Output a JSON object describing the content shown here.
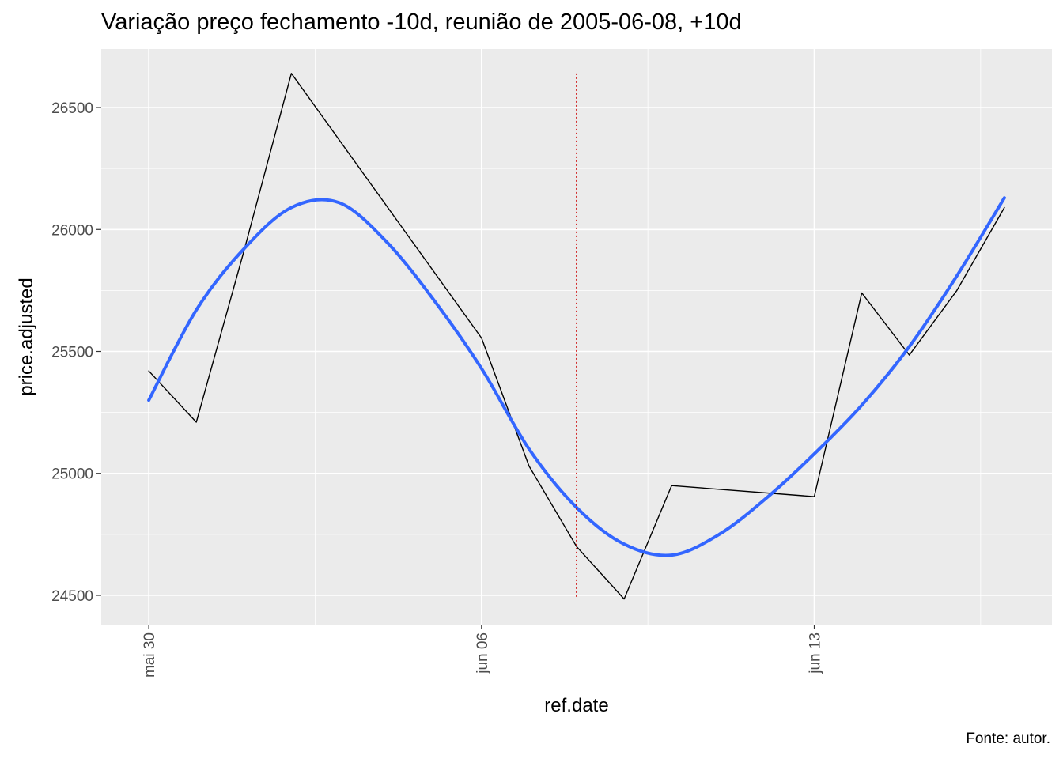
{
  "chart_data": {
    "type": "line",
    "title": "Variação preço fechamento -10d, reunião de 2005-06-08, +10d",
    "xlabel": "ref.date",
    "ylabel": "price.adjusted",
    "caption": "Fonte: autor.",
    "x_tick_labels": [
      "mai 30",
      "jun 06",
      "jun 13"
    ],
    "y_tick_labels": [
      "24500",
      "25000",
      "25500",
      "26000",
      "26500"
    ],
    "y_ticks": [
      24500,
      25000,
      25500,
      26000,
      26500
    ],
    "ylim": [
      24380,
      26740
    ],
    "xlim": [
      "2005-05-29",
      "2005-06-18"
    ],
    "x_ticks": [
      "2005-05-30",
      "2005-06-06",
      "2005-06-13"
    ],
    "grid": true,
    "series": [
      {
        "x": [
          "2005-05-30",
          "2005-05-31",
          "2005-06-01",
          "2005-06-02",
          "2005-06-06",
          "2005-06-07",
          "2005-06-08",
          "2005-06-09",
          "2005-06-10",
          "2005-06-13",
          "2005-06-14",
          "2005-06-15",
          "2005-06-16",
          "2005-06-17"
        ],
        "values": [
          25420,
          25210,
          25910,
          26640,
          25555,
          25030,
          24700,
          24485,
          24950,
          24905,
          25740,
          25485,
          25750,
          26090
        ],
        "color": "#000000"
      },
      {
        "x": [
          "2005-05-30",
          "2005-05-31",
          "2005-06-01",
          "2005-06-02",
          "2005-06-03",
          "2005-06-04",
          "2005-06-05",
          "2005-06-06",
          "2005-06-07",
          "2005-06-08",
          "2005-06-09",
          "2005-06-10",
          "2005-06-11",
          "2005-06-12",
          "2005-06-13",
          "2005-06-14",
          "2005-06-15",
          "2005-06-16",
          "2005-06-17"
        ],
        "values": [
          25300,
          25670,
          25920,
          26090,
          26110,
          25950,
          25710,
          25430,
          25100,
          24860,
          24710,
          24665,
          24750,
          24900,
          25080,
          25280,
          25520,
          25810,
          26130
        ],
        "color": "#3366ff",
        "smooth": true
      }
    ],
    "annotations": [
      {
        "type": "vline",
        "x": "2005-06-08",
        "color": "#cc0000",
        "style": "dotted"
      }
    ]
  }
}
